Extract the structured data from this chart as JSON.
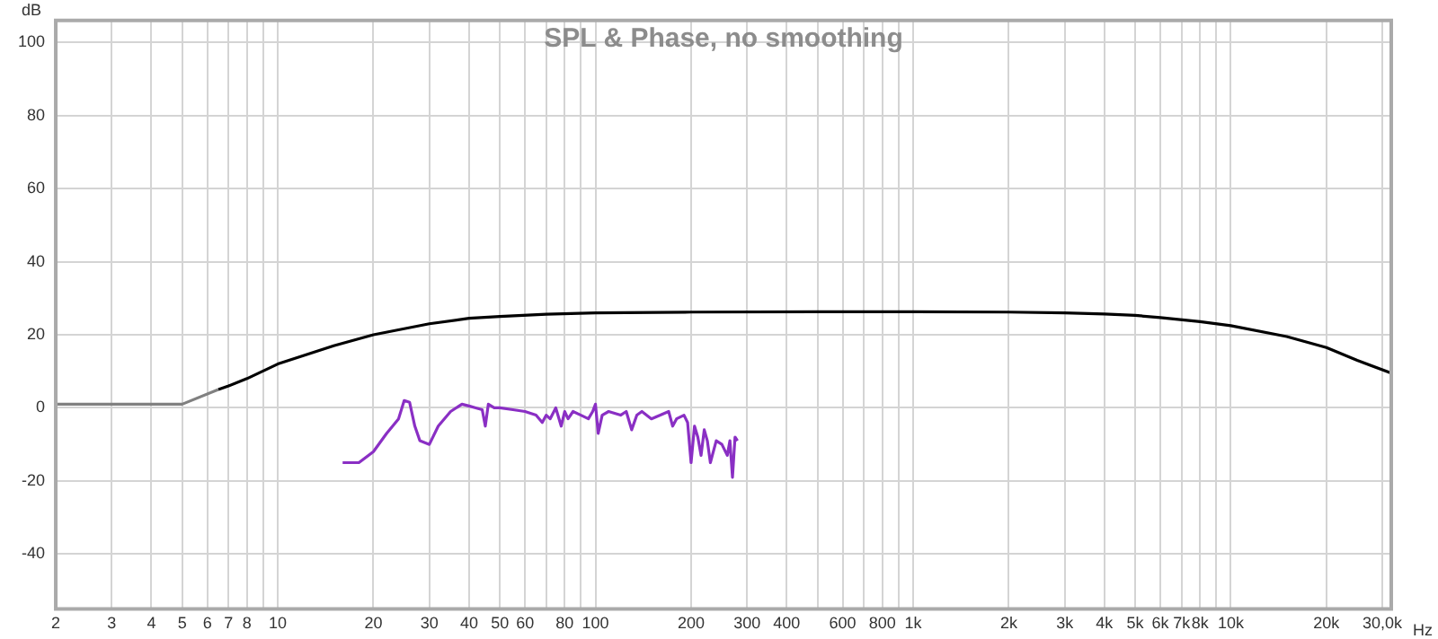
{
  "chart_data": {
    "type": "line",
    "title": "SPL & Phase, no smoothing",
    "xlabel": "Hz",
    "ylabel": "dB",
    "log": "x",
    "grid": true,
    "legend": false,
    "marker": "none",
    "line_style": "solid",
    "xlim": [
      2,
      32000
    ],
    "xticks": [
      2,
      3,
      4,
      5,
      6,
      7,
      8,
      {
        "value": 9,
        "label": null
      },
      10,
      20,
      30,
      40,
      50,
      60,
      {
        "value": 70,
        "label": null
      },
      80,
      {
        "value": 90,
        "label": null
      },
      100,
      200,
      300,
      400,
      {
        "value": 500,
        "label": null
      },
      600,
      {
        "value": 700,
        "label": null
      },
      800,
      {
        "value": 900,
        "label": null
      },
      {
        "value": 1000,
        "label": "1k"
      },
      {
        "value": 2000,
        "label": "2k"
      },
      {
        "value": 3000,
        "label": "3k"
      },
      {
        "value": 4000,
        "label": "4k"
      },
      {
        "value": 5000,
        "label": "5k"
      },
      {
        "value": 6000,
        "label": "6k"
      },
      {
        "value": 7000,
        "label": "7k"
      },
      {
        "value": 8000,
        "label": "8k"
      },
      {
        "value": 9000,
        "label": null
      },
      {
        "value": 10000,
        "label": "10k"
      },
      {
        "value": 20000,
        "label": "20k"
      },
      {
        "value": 30000,
        "label": "30,0k"
      }
    ],
    "ylim": [
      -55,
      106
    ],
    "yticks": [
      -40,
      -20,
      0,
      20,
      40,
      60,
      80,
      100
    ],
    "series": [
      {
        "color": "#808080",
        "x": [
          2,
          5,
          6.5
        ],
        "values": [
          1,
          1,
          5
        ]
      },
      {
        "color": "#000000",
        "x": [
          6.5,
          7,
          8,
          10,
          15,
          20,
          30,
          40,
          50,
          70,
          100,
          200,
          500,
          1000,
          2000,
          3000,
          4000,
          5000,
          6000,
          8000,
          10000,
          15000,
          20000,
          25000,
          32000
        ],
        "values": [
          5,
          6,
          8,
          12,
          17,
          20,
          23,
          24.5,
          25,
          25.6,
          26,
          26.2,
          26.3,
          26.3,
          26.2,
          26,
          25.7,
          25.3,
          24.7,
          23.6,
          22.5,
          19.5,
          16.5,
          13,
          9.5
        ]
      },
      {
        "color": "#8a2fc4",
        "x": [
          16,
          18,
          20,
          22,
          24,
          25,
          26,
          27,
          28,
          30,
          32,
          35,
          38,
          40,
          42,
          44,
          45,
          46,
          48,
          50,
          55,
          60,
          65,
          68,
          70,
          72,
          75,
          78,
          80,
          82,
          85,
          90,
          95,
          98,
          100,
          102,
          105,
          110,
          120,
          125,
          130,
          135,
          140,
          150,
          160,
          170,
          175,
          180,
          190,
          195,
          200,
          205,
          210,
          215,
          220,
          225,
          230,
          240,
          250,
          260,
          265,
          270,
          275,
          280
        ],
        "values": [
          -15,
          -15,
          -12,
          -7,
          -3,
          2,
          1.5,
          -5,
          -9,
          -10,
          -5,
          -1,
          1,
          0.5,
          0,
          -0.5,
          -5,
          1,
          0,
          0,
          -0.5,
          -1,
          -2,
          -4,
          -2,
          -3,
          0,
          -5,
          -1,
          -3,
          -1,
          -2,
          -3,
          -1,
          1,
          -7,
          -2,
          -1,
          -2,
          -1,
          -6,
          -2,
          -1,
          -3,
          -2,
          -1,
          -5,
          -3,
          -2,
          -4,
          -15,
          -5,
          -8,
          -13,
          -6,
          -9,
          -15,
          -9,
          -10,
          -13,
          -9,
          -19,
          -8,
          -9
        ]
      }
    ]
  }
}
